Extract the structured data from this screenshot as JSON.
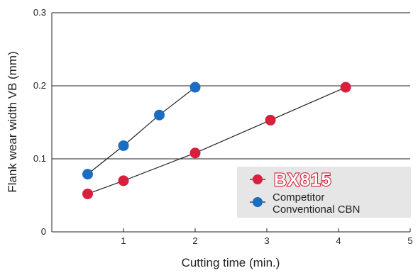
{
  "chart_data": {
    "type": "line",
    "title": "",
    "xlabel": "Cutting time (min.)",
    "ylabel": "Flank wear width VB (mm)",
    "xlim": [
      0,
      5
    ],
    "ylim": [
      0,
      0.3
    ],
    "x_ticks": [
      "1",
      "2",
      "3",
      "4",
      "5"
    ],
    "y_ticks": [
      "0",
      "0.1",
      "0.2",
      "0.3"
    ],
    "x_tick_values": [
      1,
      2,
      3,
      4,
      5
    ],
    "y_tick_values": [
      0,
      0.1,
      0.2,
      0.3
    ],
    "grid": "horizontal",
    "legend_position": "bottom-right",
    "series": [
      {
        "name": "BX815",
        "color": "#d81f3c",
        "points": [
          [
            0.5,
            0.052
          ],
          [
            1.0,
            0.07
          ],
          [
            2.0,
            0.108
          ],
          [
            3.05,
            0.153
          ],
          [
            4.1,
            0.198
          ]
        ]
      },
      {
        "name": "Competitor Conventional CBN",
        "color": "#1a6dc0",
        "points": [
          [
            0.5,
            0.079
          ],
          [
            1.0,
            0.118
          ],
          [
            1.5,
            0.16
          ],
          [
            2.0,
            0.198
          ]
        ]
      }
    ],
    "legend": {
      "brand_label": "BX815",
      "competitor_line1": "Competitor",
      "competitor_line2": "Conventional CBN"
    }
  }
}
